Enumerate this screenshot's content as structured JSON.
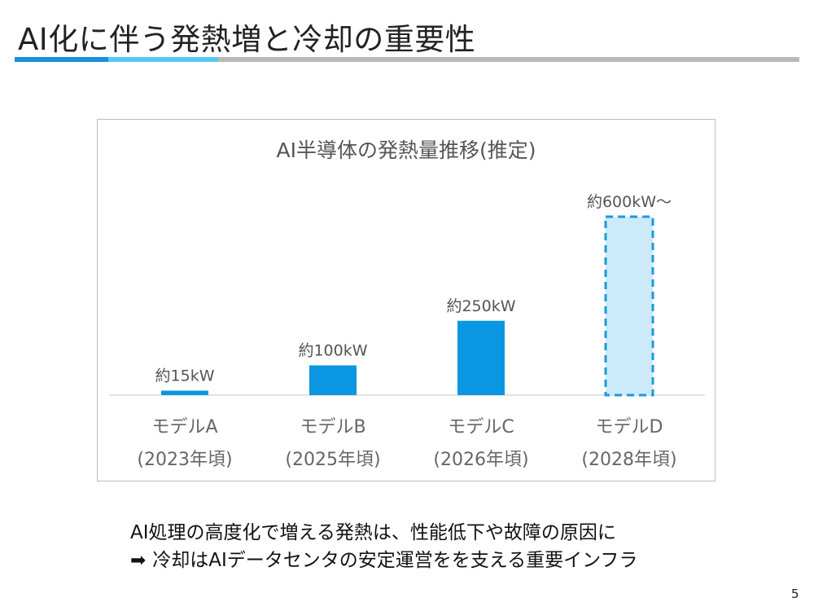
{
  "slide": {
    "title": "AI化に伴う発熱増と冷却の重要性",
    "page_number": "5"
  },
  "summary": {
    "line1": "AI処理の高度化で増える発熱は、性能低下や故障の原因に",
    "arrow_icon": "right-arrow-icon",
    "line2": "冷却はAIデータセンタの安定運営をを支える重要インフラ"
  },
  "colors": {
    "bar_fill": "#0a96e0",
    "projected_fill": "#cdeafb",
    "projected_stroke": "#1c99dc",
    "title_rule_dark": "#1690d8",
    "title_rule_light": "#55c8f0",
    "title_rule_gray": "#b9b9b9"
  },
  "chart_data": {
    "type": "bar",
    "title": "AI半導体の発熱量推移(推定)",
    "categories": [
      "モデルA",
      "モデルB",
      "モデルC",
      "モデルD"
    ],
    "category_years": [
      "(2023年頃)",
      "(2025年頃)",
      "(2026年頃)",
      "(2028年頃)"
    ],
    "values": [
      15,
      100,
      250,
      600
    ],
    "value_unit": "kW",
    "data_labels": [
      "約15kW",
      "約100kW",
      "約250kW",
      "約600kW～"
    ],
    "projected": [
      false,
      false,
      false,
      true
    ],
    "ylim": [
      0,
      600
    ],
    "grid": false,
    "legend": "none"
  }
}
